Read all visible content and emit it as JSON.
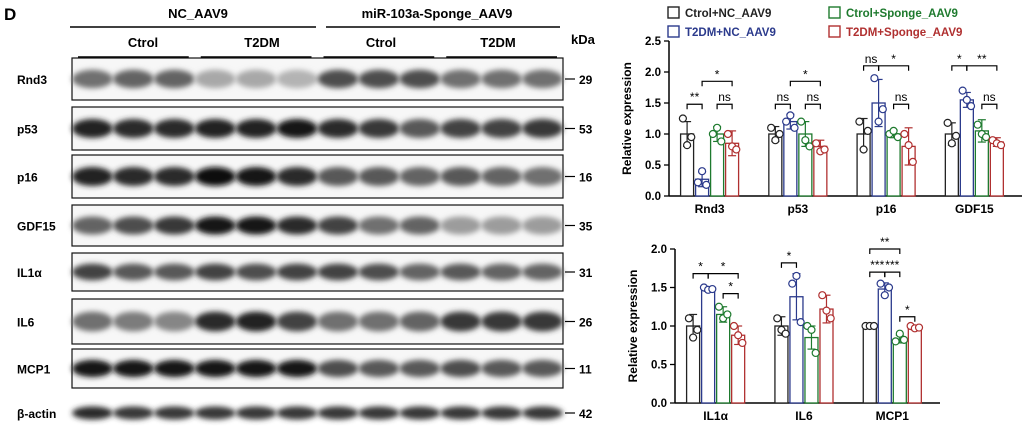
{
  "panel_label": "D",
  "blot": {
    "groups": [
      {
        "label": "NC_AAV9",
        "subgroups": [
          "Ctrol",
          "T2DM"
        ]
      },
      {
        "label": "miR-103a-Sponge_AAV9",
        "subgroups": [
          "Ctrol",
          "T2DM"
        ]
      }
    ],
    "kda_label": "kDa",
    "lanes_per_subgroup": 3,
    "rows": [
      {
        "protein": "Rnd3",
        "kda": "29",
        "intensities": [
          0.55,
          0.6,
          0.6,
          0.3,
          0.3,
          0.25,
          0.7,
          0.7,
          0.7,
          0.55,
          0.55,
          0.55
        ]
      },
      {
        "protein": "p53",
        "kda": "53",
        "intensities": [
          0.9,
          0.85,
          0.85,
          0.9,
          0.9,
          0.95,
          0.85,
          0.8,
          0.65,
          0.75,
          0.75,
          0.8
        ]
      },
      {
        "protein": "p16",
        "kda": "16",
        "intensities": [
          0.9,
          0.85,
          0.85,
          1.0,
          0.95,
          0.85,
          0.65,
          0.65,
          0.6,
          0.65,
          0.6,
          0.55
        ]
      },
      {
        "protein": "GDF15",
        "kda": "35",
        "intensities": [
          0.6,
          0.7,
          0.8,
          0.95,
          0.95,
          0.85,
          0.75,
          0.55,
          0.6,
          0.35,
          0.35,
          0.35
        ]
      },
      {
        "protein": "IL1α",
        "kda": "31",
        "intensities": [
          0.75,
          0.65,
          0.65,
          0.75,
          0.7,
          0.75,
          0.75,
          0.7,
          0.6,
          0.65,
          0.6,
          0.6
        ]
      },
      {
        "protein": "IL6",
        "kda": "26",
        "intensities": [
          0.55,
          0.5,
          0.45,
          0.85,
          0.9,
          0.75,
          0.55,
          0.55,
          0.6,
          0.8,
          0.8,
          0.8
        ]
      },
      {
        "protein": "MCP1",
        "kda": "11",
        "intensities": [
          0.95,
          0.95,
          0.95,
          0.95,
          0.95,
          0.95,
          0.7,
          0.65,
          0.65,
          0.7,
          0.65,
          0.65
        ]
      },
      {
        "protein": "β-actin",
        "kda": "42",
        "intensities": [
          0.85,
          0.8,
          0.8,
          0.8,
          0.8,
          0.8,
          0.8,
          0.8,
          0.8,
          0.8,
          0.8,
          0.8
        ]
      }
    ]
  },
  "chart_data": [
    {
      "type": "bar",
      "categories": [
        "Rnd3",
        "p53",
        "p16",
        "GDF15"
      ],
      "ylabel": "Relative expression",
      "ylim": [
        0,
        2.5
      ],
      "yticks": [
        "0.0",
        "0.5",
        "1.0",
        "1.5",
        "2.0",
        "2.5"
      ],
      "legend": {
        "placement": "top",
        "entries": [
          "Ctrol+NC_AAV9",
          "Ctrol+Sponge_AAV9",
          "T2DM+NC_AAV9",
          "T2DM+Sponge_AAV9"
        ]
      },
      "series": [
        {
          "name": "Ctrol+NC_AAV9",
          "color": "#222222",
          "values": [
            1.0,
            1.0,
            1.0,
            1.0
          ],
          "err": [
            0.2,
            0.12,
            0.25,
            0.18
          ],
          "points": [
            [
              1.25,
              0.82,
              0.95
            ],
            [
              1.1,
              0.9,
              1.0
            ],
            [
              1.2,
              0.75,
              1.05
            ],
            [
              1.18,
              0.85,
              0.97
            ]
          ]
        },
        {
          "name": "T2DM+NC_AAV9",
          "color": "#2b3a8c",
          "values": [
            0.27,
            1.2,
            1.5,
            1.55
          ],
          "err": [
            0.12,
            0.12,
            0.38,
            0.12
          ],
          "points": [
            [
              0.22,
              0.4,
              0.18
            ],
            [
              1.2,
              1.3,
              1.1
            ],
            [
              1.9,
              1.2,
              1.4
            ],
            [
              1.7,
              1.55,
              1.45
            ]
          ]
        },
        {
          "name": "Ctrol+Sponge_AAV9",
          "color": "#1e7a2e",
          "values": [
            1.0,
            1.0,
            1.0,
            1.05
          ],
          "err": [
            0.12,
            0.2,
            0.06,
            0.18
          ],
          "points": [
            [
              1.0,
              1.1,
              0.88
            ],
            [
              1.2,
              0.9,
              0.8
            ],
            [
              1.0,
              1.05,
              0.95
            ],
            [
              1.15,
              1.0,
              0.95
            ]
          ]
        },
        {
          "name": "T2DM+Sponge_AAV9",
          "color": "#b03030",
          "values": [
            0.85,
            0.8,
            0.8,
            0.87
          ],
          "err": [
            0.2,
            0.1,
            0.3,
            0.07
          ],
          "points": [
            [
              1.0,
              0.8,
              0.75
            ],
            [
              0.85,
              0.72,
              0.75
            ],
            [
              1.0,
              0.82,
              0.55
            ],
            [
              0.9,
              0.85,
              0.82
            ]
          ]
        }
      ],
      "annotations": [
        {
          "category": "Rnd3",
          "from": 0,
          "to": 1,
          "label": "**",
          "level": 1.48
        },
        {
          "category": "Rnd3",
          "from": 2,
          "to": 3,
          "label": "ns",
          "level": 1.48
        },
        {
          "category": "Rnd3",
          "from": 1,
          "to": 3,
          "label": "*",
          "level": 1.85
        },
        {
          "category": "p53",
          "from": 0,
          "to": 1,
          "label": "ns",
          "level": 1.48
        },
        {
          "category": "p53",
          "from": 2,
          "to": 3,
          "label": "ns",
          "level": 1.48
        },
        {
          "category": "p53",
          "from": 1,
          "to": 3,
          "label": "*",
          "level": 1.85
        },
        {
          "category": "p16",
          "from": 0,
          "to": 1,
          "label": "ns",
          "level": 2.1
        },
        {
          "category": "p16",
          "from": 2,
          "to": 3,
          "label": "ns",
          "level": 1.48
        },
        {
          "category": "p16",
          "from": 1,
          "to": 3,
          "label": "*",
          "level": 2.1
        },
        {
          "category": "GDF15",
          "from": 0,
          "to": 1,
          "label": "*",
          "level": 2.1
        },
        {
          "category": "GDF15",
          "from": 2,
          "to": 3,
          "label": "ns",
          "level": 1.48
        },
        {
          "category": "GDF15",
          "from": 1,
          "to": 3,
          "label": "**",
          "level": 2.1
        }
      ]
    },
    {
      "type": "bar",
      "categories": [
        "IL1α",
        "IL6",
        "MCP1"
      ],
      "ylabel": "Relative expression",
      "ylim": [
        0,
        2.0
      ],
      "yticks": [
        "0.0",
        "0.5",
        "1.0",
        "1.5",
        "2.0"
      ],
      "series": [
        {
          "name": "Ctrol+NC_AAV9",
          "color": "#222222",
          "values": [
            1.0,
            1.0,
            1.0
          ],
          "err": [
            0.15,
            0.12,
            0.02
          ],
          "points": [
            [
              1.1,
              0.85,
              0.95
            ],
            [
              1.1,
              0.95,
              0.9
            ],
            [
              1.0,
              1.0,
              1.0
            ]
          ]
        },
        {
          "name": "T2DM+NC_AAV9",
          "color": "#2b3a8c",
          "values": [
            1.48,
            1.38,
            1.48
          ],
          "err": [
            0.03,
            0.3,
            0.08
          ],
          "points": [
            [
              1.5,
              1.47,
              1.48
            ],
            [
              1.55,
              1.65,
              1.05
            ],
            [
              1.55,
              1.4,
              1.5
            ]
          ]
        },
        {
          "name": "Ctrol+Sponge_AAV9",
          "color": "#1e7a2e",
          "values": [
            1.15,
            0.85,
            0.83
          ],
          "err": [
            0.1,
            0.15,
            0.05
          ],
          "points": [
            [
              1.25,
              1.1,
              1.15
            ],
            [
              1.0,
              0.95,
              0.65
            ],
            [
              0.8,
              0.9,
              0.82
            ]
          ]
        },
        {
          "name": "T2DM+Sponge_AAV9",
          "color": "#b03030",
          "values": [
            0.88,
            1.22,
            0.98
          ],
          "err": [
            0.12,
            0.18,
            0.03
          ],
          "points": [
            [
              1.0,
              0.88,
              0.78
            ],
            [
              1.4,
              1.2,
              1.1
            ],
            [
              1.0,
              0.97,
              0.98
            ]
          ]
        }
      ],
      "annotations": [
        {
          "category": "IL1α",
          "from": 0,
          "to": 1,
          "label": "*",
          "level": 1.68
        },
        {
          "category": "IL1α",
          "from": 1,
          "to": 3,
          "label": "*",
          "level": 1.68
        },
        {
          "category": "IL1α",
          "from": 2,
          "to": 3,
          "label": "*",
          "level": 1.42
        },
        {
          "category": "IL6",
          "from": 0,
          "to": 1,
          "label": "*",
          "level": 1.82
        },
        {
          "category": "MCP1",
          "from": 0,
          "to": 2,
          "label": "**",
          "level": 2.0
        },
        {
          "category": "MCP1",
          "from": 0,
          "to": 1,
          "label": "***",
          "level": 1.7
        },
        {
          "category": "MCP1",
          "from": 1,
          "to": 2,
          "label": "***",
          "level": 1.7
        },
        {
          "category": "MCP1",
          "from": 2,
          "to": 3,
          "label": "*",
          "level": 1.12
        }
      ]
    }
  ]
}
